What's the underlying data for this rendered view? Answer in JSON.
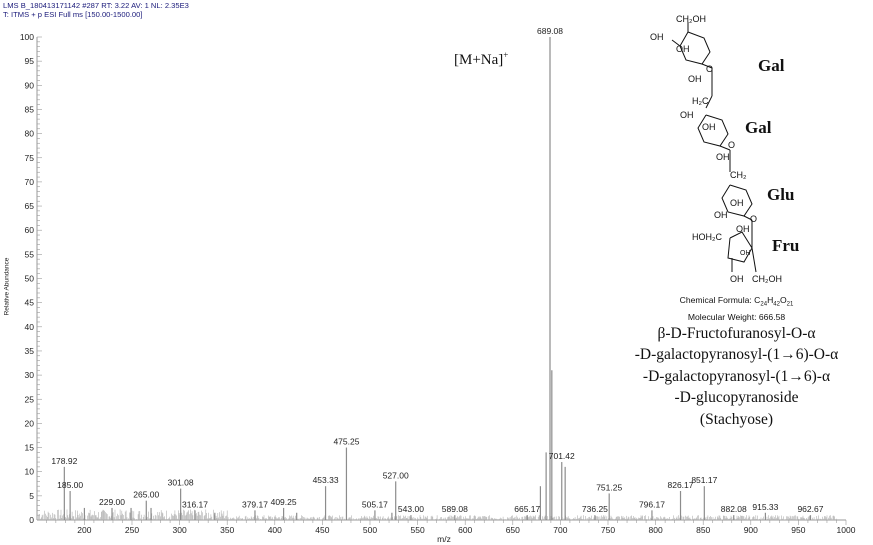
{
  "header": {
    "line1": "LMS B_180413171142 #287  RT: 3.22  AV: 1  NL: 2.35E3",
    "line2": "T: ITMS + p ESI Full ms [150.00-1500.00]"
  },
  "annotations": {
    "ion_label": "[M+Na]",
    "ion_charge": "+",
    "sugar_units": [
      "Gal",
      "Gal",
      "Glu",
      "Fru"
    ],
    "formula_prefix": "Chemical Formula: ",
    "formula_parts": [
      [
        "C",
        "24"
      ],
      [
        "H",
        "42"
      ],
      [
        "O",
        "21"
      ]
    ],
    "molecular_weight": "Molecular Weight: 666.58",
    "iupac_lines": [
      "β-D-Fructofuranosyl-O-α",
      "-D-galactopyranosyl-(1→6)-O-α",
      "-D-galactopyranosyl-(1→6)-α",
      "-D-glucopyranoside",
      "(Stachyose)"
    ],
    "structure_groups": [
      "CH2OH",
      "OH",
      "OH",
      "O",
      "OH",
      "H2C",
      "OH",
      "OH",
      "O",
      "OH",
      "CH2",
      "OH",
      "OH",
      "O",
      "OH",
      "HOH2C",
      "OH",
      "OH",
      "CH2OH"
    ]
  },
  "chart_data": {
    "type": "bar",
    "title": "",
    "xlabel": "m/z",
    "ylabel": "Relative Abundance",
    "xlim": [
      150,
      1000
    ],
    "ylim": [
      0,
      100
    ],
    "x_ticks": [
      200,
      250,
      300,
      350,
      400,
      450,
      500,
      550,
      600,
      650,
      700,
      750,
      800,
      850,
      900,
      950,
      1000
    ],
    "y_ticks": [
      0,
      5,
      10,
      15,
      20,
      25,
      30,
      35,
      40,
      45,
      50,
      55,
      60,
      65,
      70,
      75,
      80,
      85,
      90,
      95,
      100
    ],
    "grid": false,
    "legend": null,
    "peaks": [
      {
        "mz": 178.92,
        "intensity": 11.0,
        "label": "178.92"
      },
      {
        "mz": 185.0,
        "intensity": 6.0,
        "label": "185.00"
      },
      {
        "mz": 200.0,
        "intensity": 2.5,
        "label": ""
      },
      {
        "mz": 229.0,
        "intensity": 2.5,
        "label": "229.00"
      },
      {
        "mz": 249.0,
        "intensity": 2.5,
        "label": ""
      },
      {
        "mz": 265.0,
        "intensity": 4.0,
        "label": "265.00"
      },
      {
        "mz": 270.0,
        "intensity": 2.5,
        "label": ""
      },
      {
        "mz": 301.08,
        "intensity": 6.5,
        "label": "301.08"
      },
      {
        "mz": 316.17,
        "intensity": 2.0,
        "label": "316.17"
      },
      {
        "mz": 337.0,
        "intensity": 1.5,
        "label": ""
      },
      {
        "mz": 379.17,
        "intensity": 2.0,
        "label": "379.17"
      },
      {
        "mz": 409.25,
        "intensity": 2.5,
        "label": "409.25"
      },
      {
        "mz": 423.0,
        "intensity": 1.5,
        "label": ""
      },
      {
        "mz": 453.33,
        "intensity": 7.0,
        "label": "453.33"
      },
      {
        "mz": 475.25,
        "intensity": 15.0,
        "label": "475.25"
      },
      {
        "mz": 505.17,
        "intensity": 2.0,
        "label": "505.17"
      },
      {
        "mz": 523.0,
        "intensity": 1.5,
        "label": ""
      },
      {
        "mz": 527.0,
        "intensity": 8.0,
        "label": "527.00"
      },
      {
        "mz": 543.0,
        "intensity": 1.0,
        "label": "543.00"
      },
      {
        "mz": 589.08,
        "intensity": 1.0,
        "label": "589.08"
      },
      {
        "mz": 665.17,
        "intensity": 1.0,
        "label": "665.17"
      },
      {
        "mz": 679.0,
        "intensity": 7.0,
        "label": ""
      },
      {
        "mz": 685.0,
        "intensity": 14.0,
        "label": ""
      },
      {
        "mz": 689.08,
        "intensity": 100.0,
        "label": "689.08"
      },
      {
        "mz": 691.0,
        "intensity": 31.0,
        "label": ""
      },
      {
        "mz": 701.42,
        "intensity": 12.0,
        "label": "701.42"
      },
      {
        "mz": 705.0,
        "intensity": 11.0,
        "label": ""
      },
      {
        "mz": 736.25,
        "intensity": 1.0,
        "label": "736.25"
      },
      {
        "mz": 751.25,
        "intensity": 5.5,
        "label": "751.25"
      },
      {
        "mz": 796.17,
        "intensity": 2.0,
        "label": "796.17"
      },
      {
        "mz": 826.17,
        "intensity": 6.0,
        "label": "826.17"
      },
      {
        "mz": 851.17,
        "intensity": 7.0,
        "label": "851.17"
      },
      {
        "mz": 882.08,
        "intensity": 1.0,
        "label": "882.08"
      },
      {
        "mz": 915.33,
        "intensity": 1.5,
        "label": "915.33"
      },
      {
        "mz": 962.67,
        "intensity": 1.0,
        "label": "962.67"
      }
    ],
    "annotations": [
      {
        "text": "[M+Na]+",
        "near_mz": 689.08
      }
    ]
  },
  "colors": {
    "header_text": "#1a1a7a",
    "spectrum_line": "#8c8c8c",
    "axis": "#9a9a9a",
    "text": "#222222"
  }
}
